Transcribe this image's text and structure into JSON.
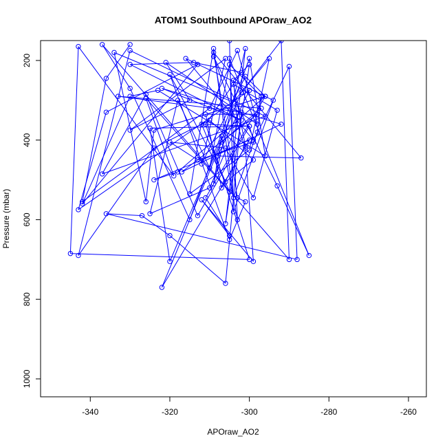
{
  "chart_data": {
    "type": "line",
    "title": "ATOM1 Southbound APOraw_AO2",
    "xlabel": "APOraw_AO2",
    "ylabel": "Pressure (mbar)",
    "xlim": [
      -352.5,
      -255.5
    ],
    "ylim": [
      1045,
      150
    ],
    "y_inverted": true,
    "x_ticks": [
      -340,
      -320,
      -300,
      -280,
      -260
    ],
    "y_ticks": [
      200,
      400,
      600,
      800,
      1000
    ],
    "grid": false,
    "legend": "none",
    "series": [
      {
        "color": "#0000ff",
        "marker": "open-circle",
        "x": [
          -330,
          -336,
          -342,
          -310,
          -303,
          -298,
          -321,
          -315,
          -330,
          -306,
          -312,
          -301,
          -296,
          -324,
          -326,
          -334,
          -304,
          -292,
          -290,
          -337,
          -330,
          -315,
          -300,
          -296,
          -323,
          -330,
          -342,
          -313,
          -336,
          -343,
          -300,
          -308,
          -287,
          -309,
          -303,
          -301,
          -305,
          -320,
          -306,
          -299,
          -310,
          -324,
          -343,
          -330,
          -296,
          -337,
          -326,
          -313,
          -300,
          -312,
          -305,
          -326,
          -319,
          -343,
          -345,
          -300,
          -311,
          -302,
          -314,
          -330,
          -302,
          -322,
          -292,
          -317,
          -298,
          -311,
          -307,
          -301,
          -304,
          -293,
          -299,
          -306,
          -320,
          -313,
          -299,
          -290,
          -288,
          -336,
          -327,
          -320,
          -306,
          -302,
          -333,
          -297,
          -307,
          -322,
          -300,
          -324,
          -318,
          -296,
          -311,
          -305,
          -312,
          -299,
          -301,
          -309,
          -293,
          -285,
          -305,
          -303,
          -307,
          -309,
          -301,
          -306,
          -300,
          -304,
          -303,
          -310,
          -325,
          -318,
          -310,
          -305,
          -297,
          -298,
          -304,
          -309,
          -315,
          -300,
          -295,
          -302,
          -320,
          -325,
          -300,
          -299,
          -316,
          -294,
          -304,
          -305
        ],
        "y": [
          160,
          245,
          555,
          320,
          175,
          360,
          205,
          300,
          375,
          195,
          460,
          240,
          290,
          375,
          555,
          180,
          305,
          150,
          700,
          160,
          270,
          600,
          195,
          440,
          275,
          290,
          560,
          210,
          330,
          575,
          275,
          440,
          445,
          180,
          545,
          555,
          650,
          235,
          505,
          450,
          350,
          420,
          690,
          175,
          340,
          485,
          285,
          590,
          365,
          360,
          530,
          295,
          490,
          165,
          685,
          700,
          360,
          230,
          205,
          210,
          350,
          270,
          360,
          480,
          335,
          335,
          520,
          415,
          260,
          325,
          545,
          420,
          405,
          450,
          405,
          215,
          700,
          585,
          590,
          640,
          760,
          330,
          290,
          320,
          405,
          770,
          400,
          500,
          480,
          290,
          545,
          640,
          550,
          705,
          420,
          190,
          515,
          690,
          195,
          600,
          390,
          510,
          170,
          610,
          210,
          250,
          360,
          520,
          585,
          300,
          470,
          210,
          290,
          380,
          545,
          170,
          535,
          425,
          195,
          280,
          705,
          370,
          365,
          400,
          195,
          300,
          580,
          150
        ]
      }
    ]
  }
}
